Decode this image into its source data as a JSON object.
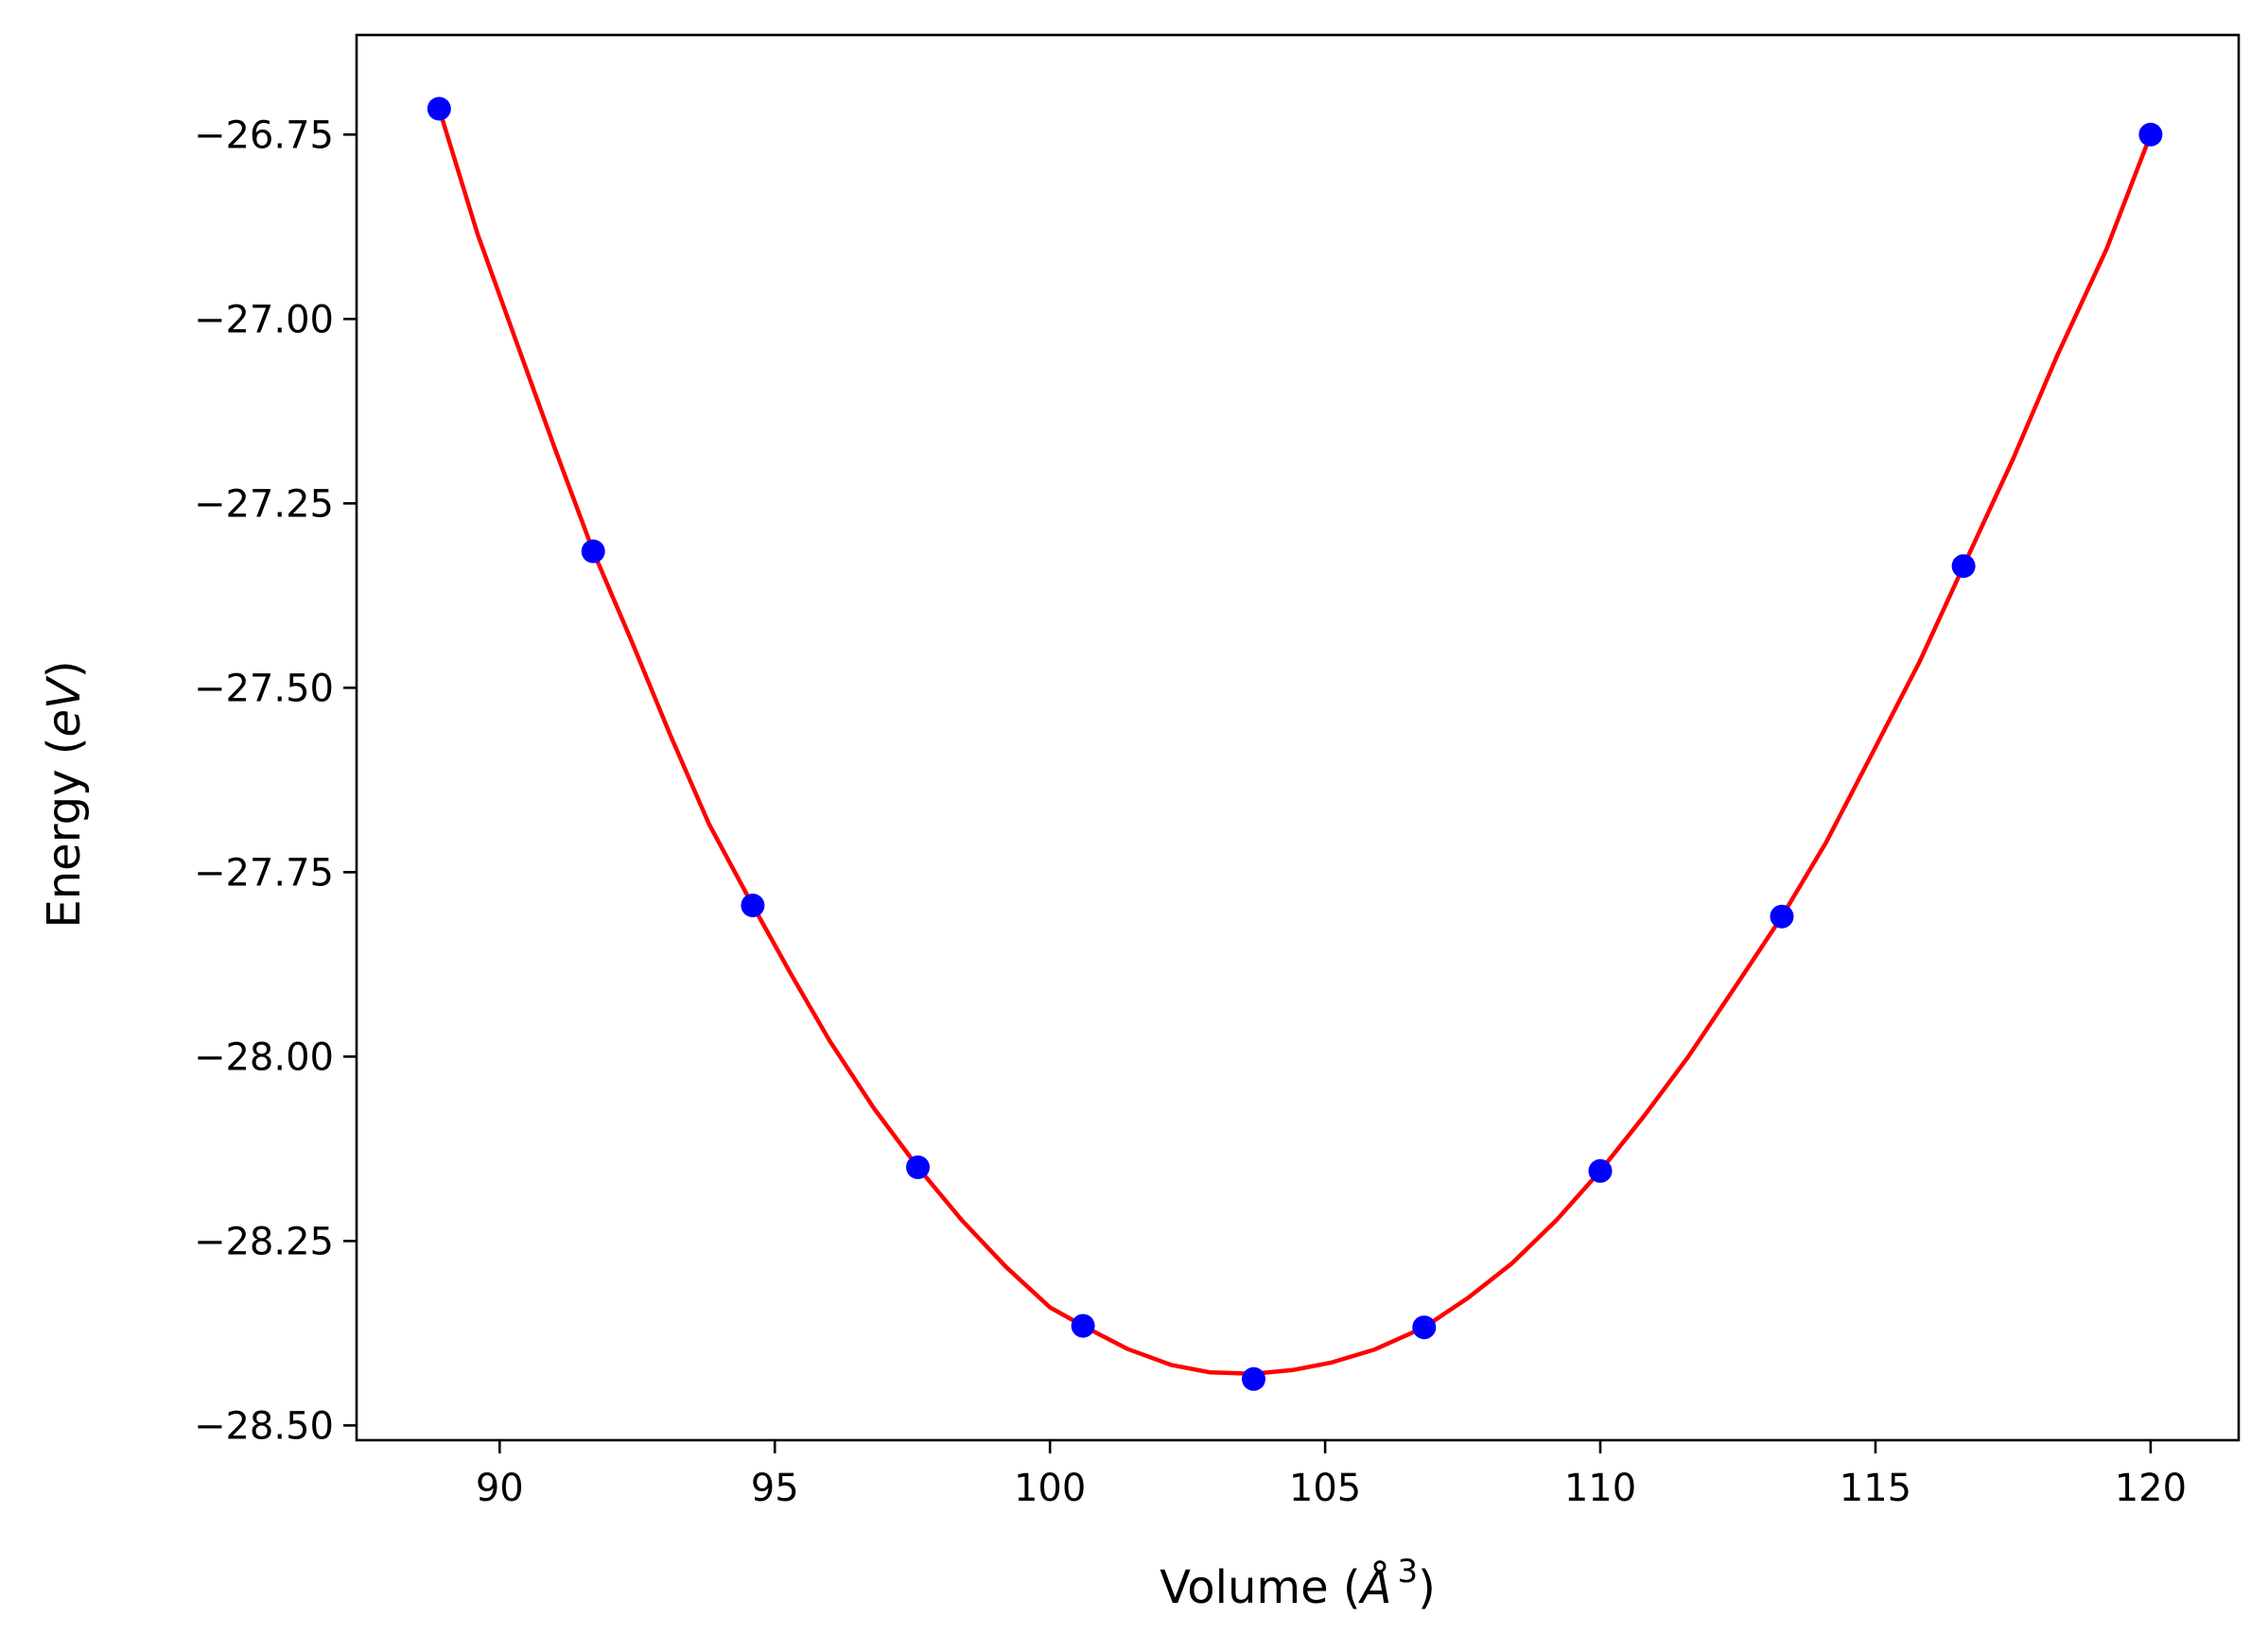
{
  "chart_data": {
    "type": "scatter",
    "xlabel": {
      "prefix": "Volume (",
      "symbol": "Å",
      "sup": "3",
      "suffix": ")"
    },
    "ylabel": {
      "prefix": "Energy (",
      "unit": "eV",
      "suffix": ")"
    },
    "xlim": [
      87.4,
      121.6
    ],
    "ylim": [
      -28.52,
      -26.615
    ],
    "xticks": [
      90,
      95,
      100,
      105,
      110,
      115,
      120
    ],
    "xtick_labels": [
      "90",
      "95",
      "100",
      "105",
      "110",
      "115",
      "120"
    ],
    "yticks": [
      -26.75,
      -27.0,
      -27.25,
      -27.5,
      -27.75,
      -28.0,
      -28.25,
      -28.5
    ],
    "ytick_labels": [
      "−26.75",
      "−27.00",
      "−27.25",
      "−27.50",
      "−27.75",
      "−28.00",
      "−28.25",
      "−28.50"
    ],
    "grid": false,
    "legend": "none",
    "colors": {
      "points": "#0000ff",
      "fit": "#ff0000",
      "axes": "#000000"
    },
    "series": [
      {
        "kind": "points",
        "x": [
          88.9,
          91.7,
          94.6,
          97.6,
          100.6,
          103.7,
          106.8,
          110.0,
          113.3,
          116.6,
          120.0
        ],
        "y": [
          -26.715,
          -27.315,
          -27.795,
          -28.15,
          -28.365,
          -28.437,
          -28.367,
          -28.155,
          -27.81,
          -27.335,
          -26.75
        ]
      },
      {
        "kind": "fit-curve",
        "x": [
          88.9,
          89.6,
          90.3,
          91.0,
          91.7,
          92.4,
          93.1,
          93.8,
          94.6,
          95.3,
          96.0,
          96.8,
          97.6,
          98.4,
          99.2,
          100.0,
          100.6,
          101.4,
          102.2,
          102.9,
          103.7,
          104.4,
          105.1,
          105.9,
          106.8,
          107.6,
          108.4,
          109.2,
          110.0,
          110.8,
          111.6,
          112.5,
          113.3,
          114.1,
          114.9,
          115.8,
          116.6,
          117.5,
          118.3,
          119.2,
          120.0
        ],
        "y": [
          -26.715,
          -26.885,
          -27.03,
          -27.175,
          -27.315,
          -27.437,
          -27.564,
          -27.684,
          -27.795,
          -27.889,
          -27.979,
          -28.07,
          -28.15,
          -28.222,
          -28.285,
          -28.34,
          -28.365,
          -28.396,
          -28.418,
          -28.428,
          -28.43,
          -28.425,
          -28.415,
          -28.397,
          -28.367,
          -28.327,
          -28.28,
          -28.222,
          -28.155,
          -28.08,
          -28.0,
          -27.9,
          -27.81,
          -27.71,
          -27.595,
          -27.465,
          -27.335,
          -27.19,
          -27.05,
          -26.905,
          -26.75
        ]
      }
    ]
  }
}
